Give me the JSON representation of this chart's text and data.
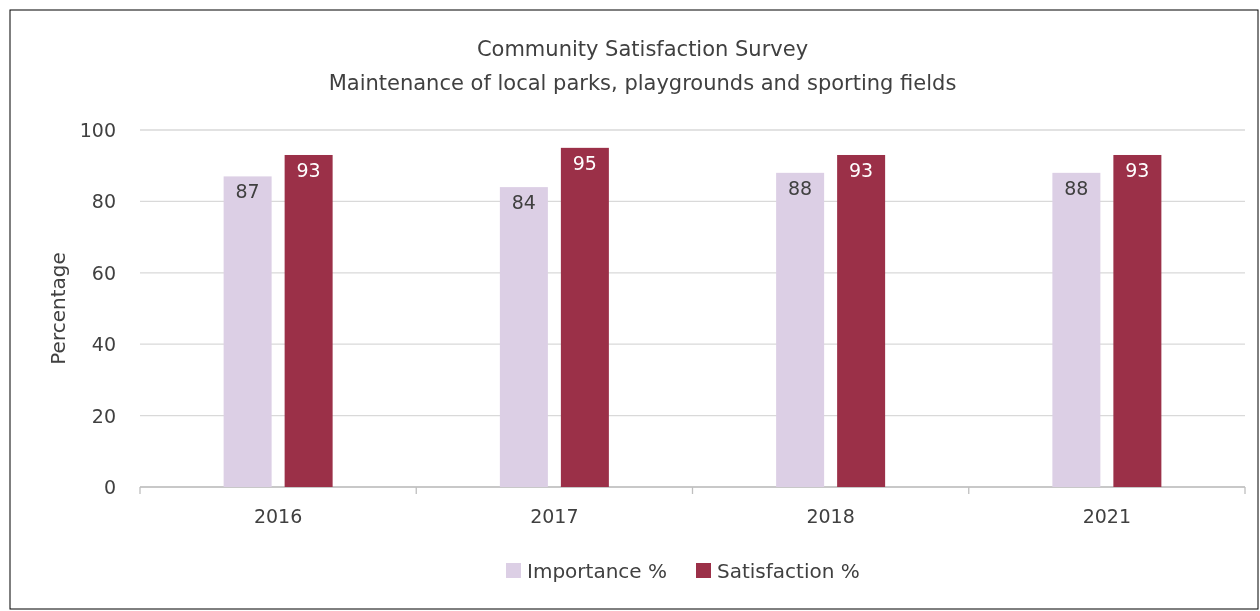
{
  "chart_data": {
    "type": "bar",
    "title": "Community Satisfaction Survey",
    "subtitle": "Maintenance of local parks, playgrounds and sporting fields",
    "ylabel": "Percentage",
    "categories": [
      "2016",
      "2017",
      "2018",
      "2021"
    ],
    "series": [
      {
        "name": "Importance %",
        "color": "#dccfe5",
        "values": [
          87,
          84,
          88,
          88
        ]
      },
      {
        "name": "Satisfaction %",
        "color": "#9b3048",
        "values": [
          93,
          95,
          93,
          93
        ]
      }
    ],
    "ylim": [
      0,
      100
    ],
    "yticks": [
      0,
      20,
      40,
      60,
      80,
      100
    ],
    "grid": "y",
    "legend": "bottom",
    "data_labels": true
  }
}
